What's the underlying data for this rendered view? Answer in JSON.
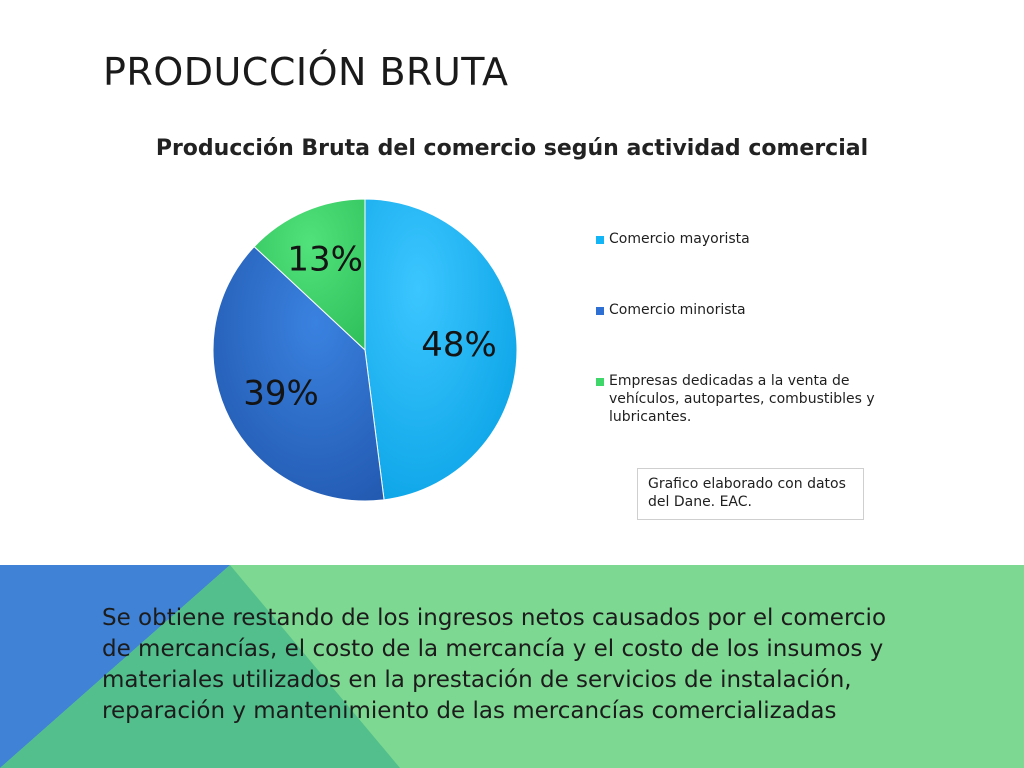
{
  "slide": {
    "title": "PRODUCCIÓN BRUTA",
    "source_note": "Grafico elaborado con datos del Dane. EAC.",
    "description": "Se obtiene restando de los ingresos netos causados por el comercio de mercancías, el costo de la mercancía y el costo de los insumos y materiales utilizados en la prestación de servicios de instalación, reparación y mantenimiento de las mercancías comercializadas"
  },
  "chart_data": {
    "type": "pie",
    "title": "Producción Bruta del comercio según actividad comercial",
    "categories": [
      "Comercio mayorista",
      "Comercio minorista",
      "Empresas dedicadas a la venta de vehículos, autopartes, combustibles y lubricantes."
    ],
    "values": [
      48,
      39,
      13
    ],
    "labels": [
      "48%",
      "39%",
      "13%"
    ],
    "colors": [
      "#12b5f5",
      "#2d6fd2",
      "#3fd66a"
    ],
    "legend_position": "right"
  },
  "colors": {
    "band_green": "#7dd891",
    "band_blue": "#3f82d6",
    "band_teal": "#52bf8c"
  }
}
